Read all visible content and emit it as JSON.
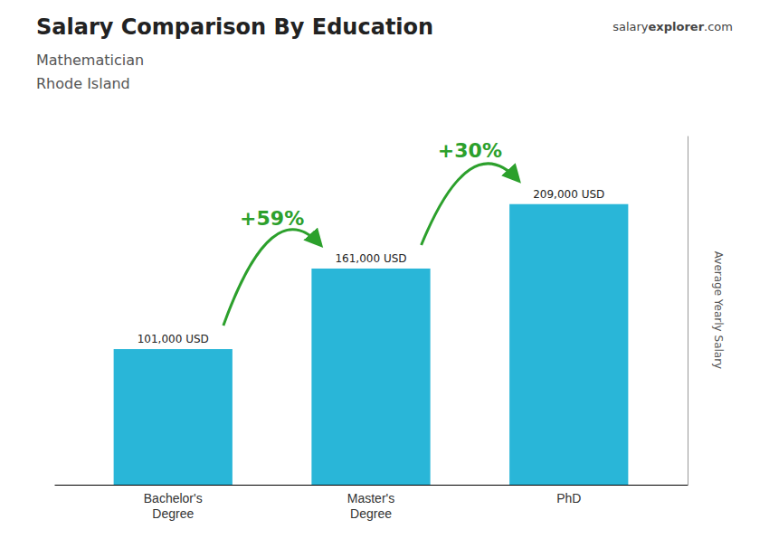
{
  "chart_data": {
    "type": "bar",
    "title": "Salary Comparison By Education",
    "subtitle": [
      "Mathematician",
      "Rhode Island"
    ],
    "ylabel": "Average Yearly Salary",
    "annotations": [
      "+59%",
      "+30%",
      "salary",
      "explorer",
      ".com"
    ],
    "categories": [
      "Bachelor's\nDegree",
      "Master's\nDegree",
      "PhD"
    ],
    "values": [
      101000,
      161000,
      209000
    ],
    "value_labels": [
      "101,000 USD",
      "161,000 USD",
      "209,000 USD"
    ],
    "data_labels": true,
    "color": "#29b6d8",
    "ylim": [
      0,
      260000
    ],
    "tick_labels": "x",
    "grid": false
  }
}
